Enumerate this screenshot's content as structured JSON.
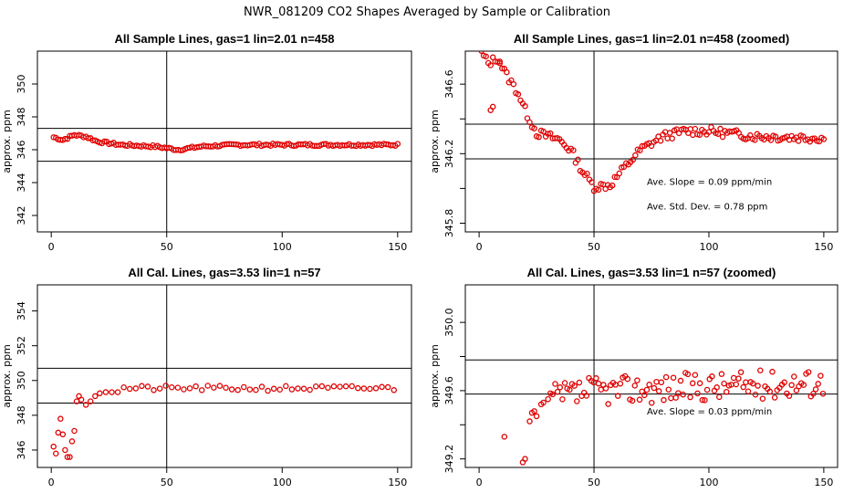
{
  "main_title": "NWR_081209  CO2 Shapes Averaged by Sample or Calibration",
  "colors": {
    "points": "#e00000",
    "axes": "#000000"
  },
  "chart_data": [
    {
      "type": "scatter",
      "title": "All Sample Lines, gas=1 lin=2.01 n=458",
      "xlabel": "",
      "ylabel": "approx. ppm",
      "xlim": [
        -6,
        156
      ],
      "ylim": [
        341,
        352
      ],
      "xticks": [
        0,
        50,
        100,
        150
      ],
      "xtick_labels": [
        "0",
        "50",
        "100",
        "150"
      ],
      "yticks": [
        342,
        344,
        346,
        348,
        350
      ],
      "ytick_labels": [
        "342",
        "344",
        "346",
        "348",
        "350"
      ],
      "vlines": [
        50
      ],
      "hlines": [
        345.3,
        347.3
      ],
      "annotations": [],
      "generator": "sample_full"
    },
    {
      "type": "scatter",
      "title": "All Sample Lines, gas=1 lin=2.01 n=458 (zoomed)",
      "xlabel": "",
      "ylabel": "approx. ppm",
      "xlim": [
        -6,
        156
      ],
      "ylim": [
        345.75,
        346.79
      ],
      "xticks": [
        0,
        50,
        100,
        150
      ],
      "xtick_labels": [
        "0",
        "50",
        "100",
        "150"
      ],
      "yticks": [
        345.8,
        346.0,
        346.2,
        346.4,
        346.6
      ],
      "ytick_labels": [
        "345.8",
        "",
        "346.2",
        "",
        "346.6"
      ],
      "vlines": [
        50
      ],
      "hlines": [
        346.17,
        346.37
      ],
      "annotations": [
        {
          "text": "Ave. Slope =  0.09  ppm/min",
          "x": 73,
          "y": 346.02
        },
        {
          "text": "Ave. Std. Dev. =  0.78  ppm",
          "x": 73,
          "y": 345.88
        }
      ],
      "generator": "sample_zoom"
    },
    {
      "type": "scatter",
      "title": "All Cal. Lines, gas=3.53 lin=1 n=57",
      "xlabel": "",
      "ylabel": "approx. ppm",
      "xlim": [
        -6,
        156
      ],
      "ylim": [
        345,
        355.5
      ],
      "xticks": [
        0,
        50,
        100,
        150
      ],
      "xtick_labels": [
        "0",
        "50",
        "100",
        "150"
      ],
      "yticks": [
        346,
        348,
        350,
        352,
        354
      ],
      "ytick_labels": [
        "346",
        "348",
        "350",
        "352",
        "354"
      ],
      "vlines": [
        50
      ],
      "hlines": [
        348.7,
        350.7
      ],
      "annotations": [],
      "generator": "cal_full"
    },
    {
      "type": "scatter",
      "title": "All Cal. Lines, gas=3.53 lin=1 n=57 (zoomed)",
      "xlabel": "",
      "ylabel": "approx. ppm",
      "xlim": [
        -6,
        156
      ],
      "ylim": [
        349.15,
        350.22
      ],
      "xticks": [
        0,
        50,
        100,
        150
      ],
      "xtick_labels": [
        "0",
        "50",
        "100",
        "150"
      ],
      "yticks": [
        349.2,
        349.4,
        349.6,
        349.8,
        350.0
      ],
      "ytick_labels": [
        "349.2",
        "",
        "349.6",
        "",
        "350.0"
      ],
      "vlines": [
        50
      ],
      "hlines": [
        349.58,
        349.78
      ],
      "annotations": [
        {
          "text": "Ave. Slope =  0.03  ppm/min",
          "x": 73,
          "y": 349.46
        }
      ],
      "generator": "cal_zoom"
    }
  ]
}
